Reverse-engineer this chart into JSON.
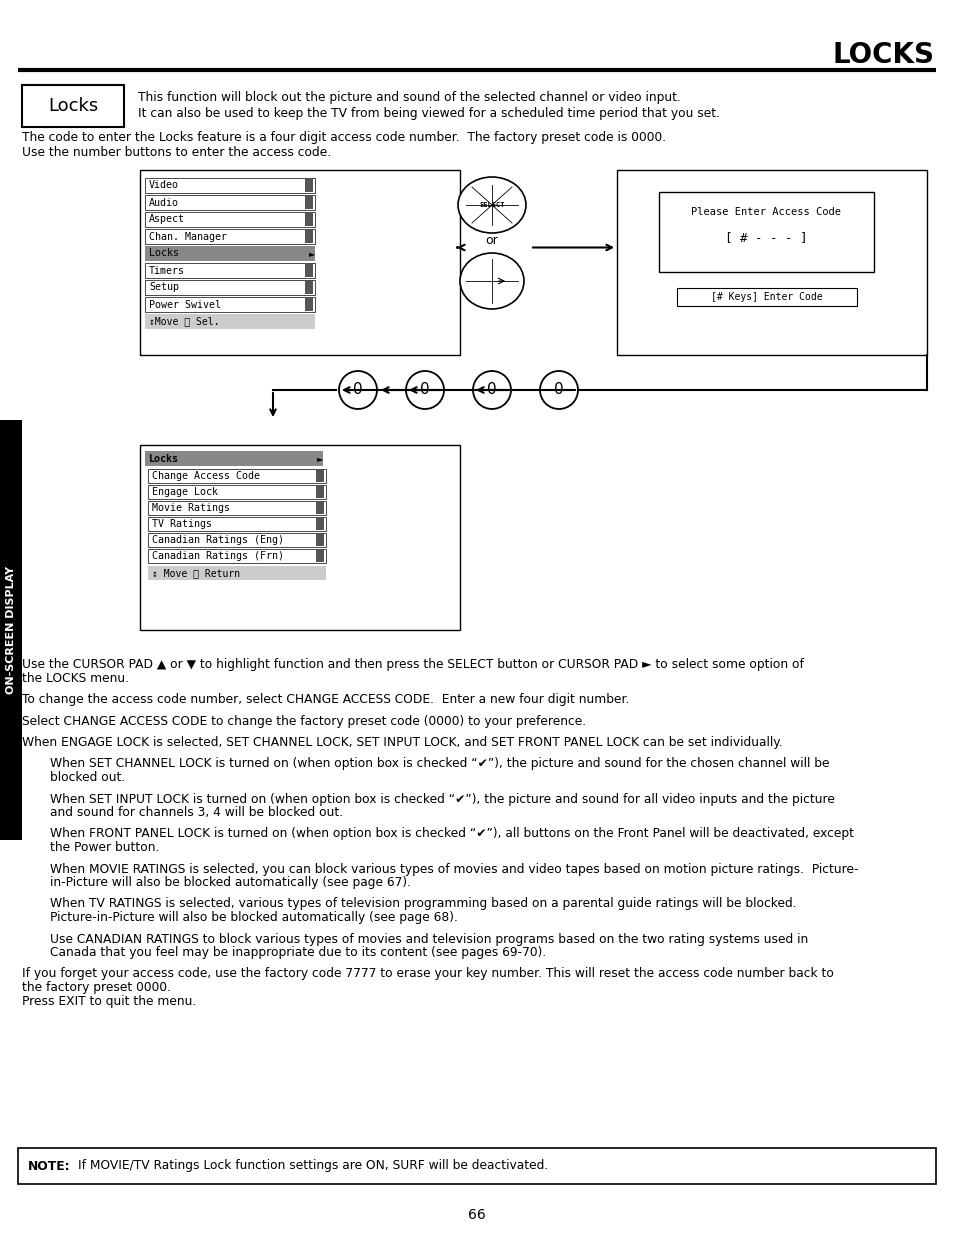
{
  "title": "LOCKS",
  "bg_color": "#ffffff",
  "text_color": "#000000",
  "page_number": "66",
  "locks_box_label": "Locks",
  "locks_desc_line1": "This function will block out the picture and sound of the selected channel or video input.",
  "locks_desc_line2": "It can also be used to keep the TV from being viewed for a scheduled time period that you set.",
  "intro_text1": "The code to enter the Locks feature is a four digit access code number.  The factory preset code is 0000.",
  "intro_text2": "Use the number buttons to enter the access code.",
  "menu_items_left": [
    "Video",
    "Audio",
    "Aspect",
    "Chan. Manager",
    "Locks",
    "Timers",
    "Setup",
    "Power Swivel"
  ],
  "menu_footer_left": "↕Move Ⓢ Sel.",
  "access_code_title": "Please Enter Access Code",
  "access_code_display": "[ # - - - ]",
  "access_code_enter": "[# Keys] Enter Code",
  "locks_submenu_header": "Locks",
  "locks_submenu_items": [
    "Change Access Code",
    "Engage Lock",
    "Movie Ratings",
    "TV Ratings",
    "Canadian Ratings (Eng)",
    "Canadian Ratings (Frn)"
  ],
  "locks_submenu_footer": "↕ Move Ⓢ Return",
  "body_paragraphs": [
    {
      "indent": false,
      "lines": [
        "Use the CURSOR PAD ▲ or ▼ to highlight function and then press the SELECT button or CURSOR PAD ► to select some option of",
        "the LOCKS menu."
      ]
    },
    {
      "indent": false,
      "lines": [
        "To change the access code number, select CHANGE ACCESS CODE.  Enter a new four digit number."
      ]
    },
    {
      "indent": false,
      "lines": [
        "Select CHANGE ACCESS CODE to change the factory preset code (0000) to your preference."
      ]
    },
    {
      "indent": false,
      "lines": [
        "When ENGAGE LOCK is selected, SET CHANNEL LOCK, SET INPUT LOCK, and SET FRONT PANEL LOCK can be set individually."
      ]
    },
    {
      "indent": true,
      "lines": [
        "When SET CHANNEL LOCK is turned on (when option box is checked “✔”), the picture and sound for the chosen channel will be",
        "blocked out."
      ]
    },
    {
      "indent": true,
      "lines": [
        "When SET INPUT LOCK is turned on (when option box is checked “✔”), the picture and sound for all video inputs and the picture",
        "and sound for channels 3, 4 will be blocked out."
      ]
    },
    {
      "indent": true,
      "lines": [
        "When FRONT PANEL LOCK is turned on (when option box is checked “✔”), all buttons on the Front Panel will be deactivated, except",
        "the Power button."
      ]
    },
    {
      "indent": true,
      "lines": [
        "When MOVIE RATINGS is selected, you can block various types of movies and video tapes based on motion picture ratings.  Picture-",
        "in-Picture will also be blocked automatically (see page 67)."
      ]
    },
    {
      "indent": true,
      "lines": [
        "When TV RATINGS is selected, various types of television programming based on a parental guide ratings will be blocked.",
        "Picture-in-Picture will also be blocked automatically (see page 68)."
      ]
    },
    {
      "indent": true,
      "lines": [
        "Use CANADIAN RATINGS to block various types of movies and television programs based on the two rating systems used in",
        "Canada that you feel may be inappropriate due to its content (see pages 69-70)."
      ]
    },
    {
      "indent": false,
      "lines": [
        "If you forget your access code, use the factory code 7777 to erase your key number. This will reset the access code number back to",
        "the factory preset 0000.",
        "Press EXIT to quit the menu."
      ]
    }
  ],
  "note_label": "NOTE:",
  "note_text": "If MOVIE/TV Ratings Lock function settings are ON, SURF will be deactivated.",
  "sidebar_text": "ON-SCREEN DISPLAY"
}
